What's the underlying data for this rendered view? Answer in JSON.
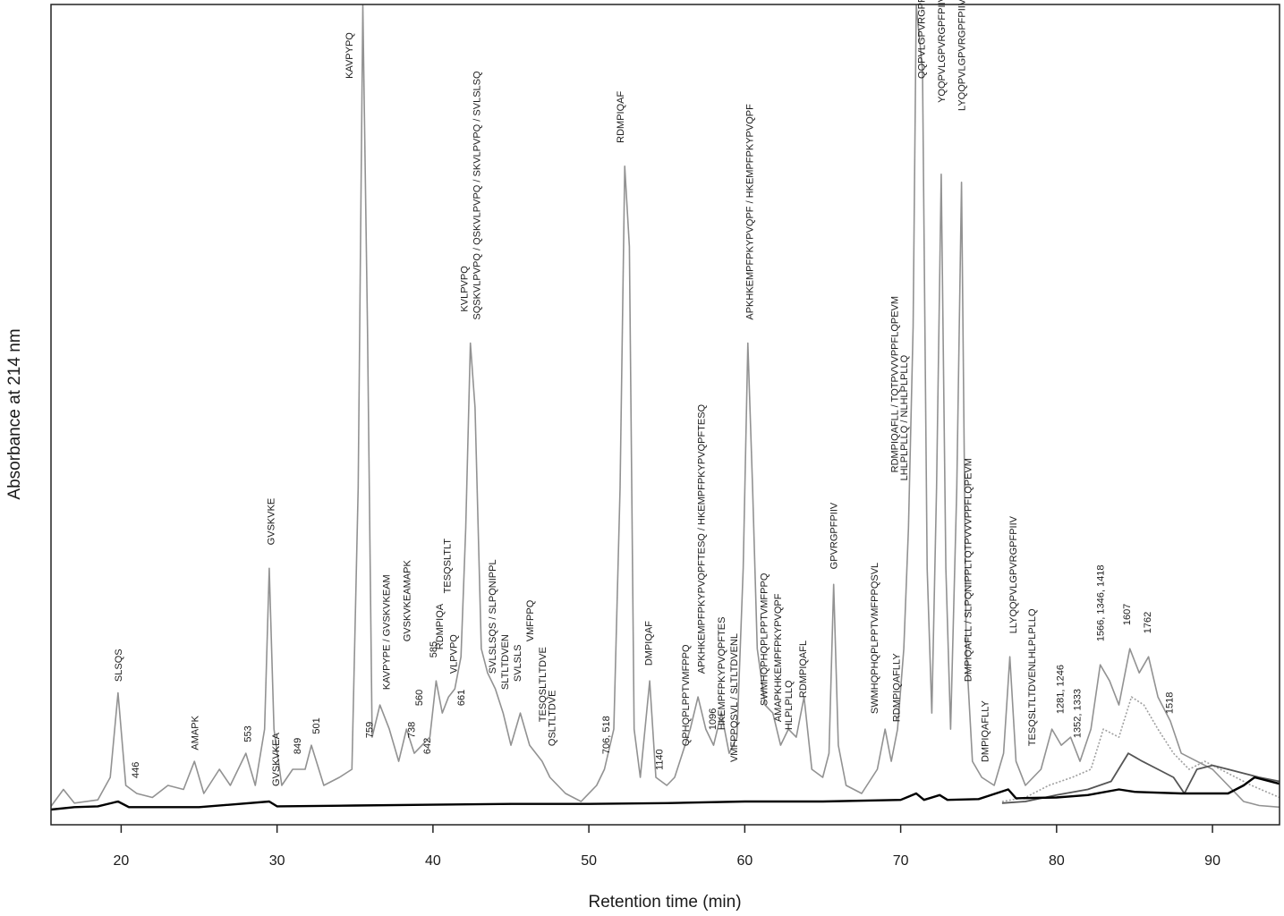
{
  "chart_data": {
    "type": "line",
    "title": "",
    "xlabel": "Retention time (min)",
    "ylabel": "Absorbance at 214 nm",
    "xlim": [
      15.5,
      94.3
    ],
    "ylim": [
      0,
      1
    ],
    "xticks": [
      20,
      30,
      40,
      50,
      60,
      70,
      80,
      90
    ],
    "grid": false,
    "legend": "none",
    "colors": {
      "gray": "#8c8c8c",
      "dotted": "#9a9a9a",
      "dark": "#555555",
      "black": "#000000",
      "frame": "#222222"
    },
    "series": [
      {
        "style": "gray",
        "points": [
          [
            15.5,
            0.004
          ],
          [
            16.3,
            0.025
          ],
          [
            17,
            0.008
          ],
          [
            18.5,
            0.012
          ],
          [
            19.3,
            0.04
          ],
          [
            19.8,
            0.145
          ],
          [
            20.3,
            0.03
          ],
          [
            21,
            0.02
          ],
          [
            22,
            0.015
          ],
          [
            23,
            0.03
          ],
          [
            24,
            0.025
          ],
          [
            24.7,
            0.06
          ],
          [
            25.3,
            0.02
          ],
          [
            26.3,
            0.05
          ],
          [
            27,
            0.03
          ],
          [
            28,
            0.07
          ],
          [
            28.6,
            0.03
          ],
          [
            29.2,
            0.1
          ],
          [
            29.5,
            0.3
          ],
          [
            29.8,
            0.1
          ],
          [
            30.3,
            0.03
          ],
          [
            31,
            0.05
          ],
          [
            31.8,
            0.05
          ],
          [
            32.2,
            0.08
          ],
          [
            33,
            0.03
          ],
          [
            34,
            0.04
          ],
          [
            34.8,
            0.05
          ],
          [
            35.2,
            0.4
          ],
          [
            35.5,
            1.0
          ],
          [
            35.8,
            0.6
          ],
          [
            36.1,
            0.09
          ],
          [
            36.6,
            0.13
          ],
          [
            37.2,
            0.1
          ],
          [
            37.8,
            0.06
          ],
          [
            38.3,
            0.1
          ],
          [
            38.8,
            0.07
          ],
          [
            39.3,
            0.08
          ],
          [
            39.8,
            0.09
          ],
          [
            40.2,
            0.16
          ],
          [
            40.6,
            0.12
          ],
          [
            41,
            0.14
          ],
          [
            41.4,
            0.15
          ],
          [
            41.8,
            0.19
          ],
          [
            42.1,
            0.35
          ],
          [
            42.4,
            0.58
          ],
          [
            42.7,
            0.5
          ],
          [
            43.1,
            0.2
          ],
          [
            43.5,
            0.17
          ],
          [
            44,
            0.15
          ],
          [
            44.5,
            0.12
          ],
          [
            45,
            0.08
          ],
          [
            45.6,
            0.12
          ],
          [
            46.2,
            0.08
          ],
          [
            47,
            0.06
          ],
          [
            47.5,
            0.04
          ],
          [
            48.5,
            0.02
          ],
          [
            49.5,
            0.01
          ],
          [
            50.5,
            0.03
          ],
          [
            51,
            0.05
          ],
          [
            51.6,
            0.1
          ],
          [
            52,
            0.4
          ],
          [
            52.3,
            0.8
          ],
          [
            52.6,
            0.7
          ],
          [
            52.9,
            0.1
          ],
          [
            53.3,
            0.04
          ],
          [
            53.9,
            0.16
          ],
          [
            54.3,
            0.04
          ],
          [
            55,
            0.03
          ],
          [
            55.5,
            0.04
          ],
          [
            56,
            0.07
          ],
          [
            56.5,
            0.1
          ],
          [
            57,
            0.14
          ],
          [
            57.5,
            0.1
          ],
          [
            58,
            0.08
          ],
          [
            58.5,
            0.12
          ],
          [
            59,
            0.07
          ],
          [
            59.5,
            0.09
          ],
          [
            59.9,
            0.3
          ],
          [
            60.2,
            0.58
          ],
          [
            60.5,
            0.4
          ],
          [
            60.8,
            0.2
          ],
          [
            61.3,
            0.13
          ],
          [
            61.8,
            0.12
          ],
          [
            62.3,
            0.08
          ],
          [
            62.8,
            0.1
          ],
          [
            63.3,
            0.09
          ],
          [
            63.8,
            0.14
          ],
          [
            64.3,
            0.05
          ],
          [
            65,
            0.04
          ],
          [
            65.4,
            0.07
          ],
          [
            65.7,
            0.28
          ],
          [
            66,
            0.08
          ],
          [
            66.5,
            0.03
          ],
          [
            67.5,
            0.02
          ],
          [
            68.5,
            0.05
          ],
          [
            69,
            0.1
          ],
          [
            69.4,
            0.06
          ],
          [
            69.8,
            0.1
          ],
          [
            70.2,
            0.2
          ],
          [
            70.5,
            0.35
          ],
          [
            70.8,
            0.6
          ],
          [
            71,
            1.0
          ],
          [
            71.4,
            0.92
          ],
          [
            71.7,
            0.3
          ],
          [
            72,
            0.12
          ],
          [
            72.3,
            0.4
          ],
          [
            72.6,
            0.79
          ],
          [
            72.9,
            0.3
          ],
          [
            73.2,
            0.1
          ],
          [
            73.6,
            0.4
          ],
          [
            73.9,
            0.78
          ],
          [
            74.2,
            0.2
          ],
          [
            74.6,
            0.06
          ],
          [
            75.2,
            0.04
          ],
          [
            76,
            0.03
          ],
          [
            76.6,
            0.07
          ],
          [
            77,
            0.19
          ],
          [
            77.4,
            0.06
          ],
          [
            78,
            0.03
          ],
          [
            79,
            0.05
          ],
          [
            79.7,
            0.1
          ],
          [
            80.3,
            0.08
          ],
          [
            80.9,
            0.09
          ],
          [
            81.5,
            0.06
          ],
          [
            82.2,
            0.1
          ],
          [
            82.8,
            0.18
          ],
          [
            83.4,
            0.16
          ],
          [
            84,
            0.13
          ],
          [
            84.7,
            0.2
          ],
          [
            85.3,
            0.17
          ],
          [
            85.9,
            0.19
          ],
          [
            86.5,
            0.14
          ],
          [
            87.3,
            0.11
          ],
          [
            88,
            0.07
          ],
          [
            89,
            0.06
          ],
          [
            90,
            0.05
          ],
          [
            91,
            0.03
          ],
          [
            92,
            0.01
          ],
          [
            93,
            0.005
          ],
          [
            94.3,
            0.003
          ]
        ]
      },
      {
        "style": "dotted",
        "points": [
          [
            76.5,
            0.01
          ],
          [
            78,
            0.015
          ],
          [
            79.5,
            0.03
          ],
          [
            81,
            0.04
          ],
          [
            82.2,
            0.05
          ],
          [
            83,
            0.1
          ],
          [
            84,
            0.09
          ],
          [
            84.8,
            0.14
          ],
          [
            85.6,
            0.13
          ],
          [
            86.5,
            0.1
          ],
          [
            87.5,
            0.07
          ],
          [
            88.5,
            0.05
          ],
          [
            89.5,
            0.06
          ],
          [
            90.5,
            0.05
          ],
          [
            91.5,
            0.04
          ],
          [
            92.5,
            0.03
          ],
          [
            94.3,
            0.015
          ]
        ]
      },
      {
        "style": "dark",
        "points": [
          [
            76.5,
            0.008
          ],
          [
            78,
            0.01
          ],
          [
            80,
            0.018
          ],
          [
            82,
            0.025
          ],
          [
            83.5,
            0.035
          ],
          [
            84.6,
            0.07
          ],
          [
            85.5,
            0.06
          ],
          [
            86.5,
            0.05
          ],
          [
            87.5,
            0.04
          ],
          [
            88.2,
            0.02
          ],
          [
            89,
            0.05
          ],
          [
            90,
            0.055
          ],
          [
            91,
            0.05
          ],
          [
            92,
            0.045
          ],
          [
            93,
            0.04
          ],
          [
            94.3,
            0.035
          ]
        ]
      },
      {
        "style": "black",
        "points": [
          [
            15.5,
            0.0
          ],
          [
            17,
            0.003
          ],
          [
            18.5,
            0.004
          ],
          [
            19.8,
            0.01
          ],
          [
            20.5,
            0.003
          ],
          [
            25,
            0.003
          ],
          [
            29.5,
            0.01
          ],
          [
            30,
            0.004
          ],
          [
            35,
            0.005
          ],
          [
            40,
            0.006
          ],
          [
            45,
            0.007
          ],
          [
            50,
            0.007
          ],
          [
            55,
            0.008
          ],
          [
            60,
            0.01
          ],
          [
            65,
            0.01
          ],
          [
            70,
            0.012
          ],
          [
            71,
            0.02
          ],
          [
            71.5,
            0.012
          ],
          [
            72.5,
            0.018
          ],
          [
            73,
            0.012
          ],
          [
            75,
            0.013
          ],
          [
            76.9,
            0.025
          ],
          [
            77.4,
            0.014
          ],
          [
            80,
            0.015
          ],
          [
            82,
            0.018
          ],
          [
            84,
            0.025
          ],
          [
            85,
            0.022
          ],
          [
            88,
            0.02
          ],
          [
            91,
            0.02
          ],
          [
            92,
            0.03
          ],
          [
            92.7,
            0.04
          ],
          [
            94.3,
            0.032
          ]
        ]
      }
    ],
    "peak_labels": [
      {
        "text": "SLSQS",
        "x": 19.8,
        "y": 0.15
      },
      {
        "text": "446",
        "x": 20.9,
        "y": 0.03
      },
      {
        "text": "AMAPK",
        "x": 24.7,
        "y": 0.065
      },
      {
        "text": "553",
        "x": 28.1,
        "y": 0.075
      },
      {
        "text": "GVSKVKE",
        "x": 29.6,
        "y": 0.32
      },
      {
        "text": "GVSKVKEA",
        "x": 29.9,
        "y": 0.02
      },
      {
        "text": "849",
        "x": 31.3,
        "y": 0.06
      },
      {
        "text": "501",
        "x": 32.5,
        "y": 0.085
      },
      {
        "text": "KAVPYPQ",
        "x": 34.6,
        "y": 0.9
      },
      {
        "text": "759",
        "x": 35.9,
        "y": 0.08
      },
      {
        "text": "KAVPYPE / GVSKVKEAM",
        "x": 37.0,
        "y": 0.14
      },
      {
        "text": "GVSKVKEAMAPK",
        "x": 38.3,
        "y": 0.2
      },
      {
        "text": "738",
        "x": 38.6,
        "y": 0.08
      },
      {
        "text": "560",
        "x": 39.1,
        "y": 0.12
      },
      {
        "text": "642",
        "x": 39.6,
        "y": 0.06
      },
      {
        "text": "585",
        "x": 40.0,
        "y": 0.18
      },
      {
        "text": "RDMPIQA",
        "x": 40.4,
        "y": 0.19
      },
      {
        "text": "TESQSLTLT",
        "x": 40.9,
        "y": 0.26
      },
      {
        "text": "VLPVPQ",
        "x": 41.3,
        "y": 0.16
      },
      {
        "text": "661",
        "x": 41.8,
        "y": 0.12
      },
      {
        "text": "KVLPVPQ",
        "x": 42.0,
        "y": 0.61
      },
      {
        "text": "SQSKVLPVPQ / QSKVLPVPQ / SKVLPVPQ / SVLSLSQ",
        "x": 42.8,
        "y": 0.6
      },
      {
        "text": "SVLSLSQS / SLPQNIPPL",
        "x": 43.8,
        "y": 0.16
      },
      {
        "text": "SLTLTDVEN",
        "x": 44.6,
        "y": 0.14
      },
      {
        "text": "SVLSLS",
        "x": 45.4,
        "y": 0.15
      },
      {
        "text": "VMFPPQ",
        "x": 46.2,
        "y": 0.2
      },
      {
        "text": "TESQSLTLTDVE",
        "x": 47.0,
        "y": 0.1
      },
      {
        "text": "QSLTLTDVE",
        "x": 47.6,
        "y": 0.07
      },
      {
        "text": "706, 518",
        "x": 51.1,
        "y": 0.06
      },
      {
        "text": "RDMPIQAF",
        "x": 52.0,
        "y": 0.82
      },
      {
        "text": "DMPIQAF",
        "x": 53.8,
        "y": 0.17
      },
      {
        "text": "1140",
        "x": 54.5,
        "y": 0.04
      },
      {
        "text": "QPHQPLPPTVMFPPQ",
        "x": 56.2,
        "y": 0.07
      },
      {
        "text": "APKHKEMPFPKYPVQPFTESQ / HKEMPFPKYPVQPFTESQ",
        "x": 57.2,
        "y": 0.16
      },
      {
        "text": "1096",
        "x": 57.9,
        "y": 0.09
      },
      {
        "text": "HKEMPFPKYPVQPFTES",
        "x": 58.5,
        "y": 0.09
      },
      {
        "text": "VMFPPQSVL / SLTLTDVENL",
        "x": 59.3,
        "y": 0.05
      },
      {
        "text": "APKHKEMPFPKYPVQPF / HKEMPFPKYPVQPF",
        "x": 60.3,
        "y": 0.6
      },
      {
        "text": "SWMHQPHQPLPPTVMFPPQ",
        "x": 61.2,
        "y": 0.12
      },
      {
        "text": "AMAPKHKEMPFPKYPVQPF",
        "x": 62.1,
        "y": 0.1
      },
      {
        "text": "HLPLPLLQ",
        "x": 62.8,
        "y": 0.09
      },
      {
        "text": "RDMPIQAFL",
        "x": 63.7,
        "y": 0.13
      },
      {
        "text": "GPVRGPFPIIV",
        "x": 65.7,
        "y": 0.29
      },
      {
        "text": "SWMHQPHQPLPPTVMFPPQSVL",
        "x": 68.3,
        "y": 0.11
      },
      {
        "text": "RDMPIQAFLLY",
        "x": 69.7,
        "y": 0.1
      },
      {
        "text": "RDMPIQAFLL / TQTPVVVPPFLQPEVM",
        "x": 69.6,
        "y": 0.41
      },
      {
        "text": "LHLPLPLLQ / NLHLPLPLLQ",
        "x": 70.2,
        "y": 0.4
      },
      {
        "text": "QQPVLGPVRGPFPIIV / DVENLHPLPLLQ",
        "x": 71.3,
        "y": 0.9
      },
      {
        "text": "YQQPVLGPVRGPFPIIV",
        "x": 72.6,
        "y": 0.87
      },
      {
        "text": "LYQQPVLGPVRGPFPIIV",
        "x": 73.9,
        "y": 0.86
      },
      {
        "text": "DMPIQAFLL / SLPQNIPPLTQTPVVVPPFLQPEVM",
        "x": 74.3,
        "y": 0.15
      },
      {
        "text": "DMPIQAFLLY",
        "x": 75.4,
        "y": 0.05
      },
      {
        "text": "LLYQQPVLGPVRGPFPIIV",
        "x": 77.2,
        "y": 0.21
      },
      {
        "text": "TESQSLTLTDVENLHLPLPLLQ",
        "x": 78.4,
        "y": 0.07
      },
      {
        "text": "1281, 1246",
        "x": 80.2,
        "y": 0.11
      },
      {
        "text": "1352, 1333",
        "x": 81.3,
        "y": 0.08
      },
      {
        "text": "1566, 1346, 1418",
        "x": 82.8,
        "y": 0.2
      },
      {
        "text": "1607",
        "x": 84.5,
        "y": 0.22
      },
      {
        "text": "1762",
        "x": 85.8,
        "y": 0.21
      },
      {
        "text": "1518",
        "x": 87.2,
        "y": 0.11
      }
    ]
  }
}
